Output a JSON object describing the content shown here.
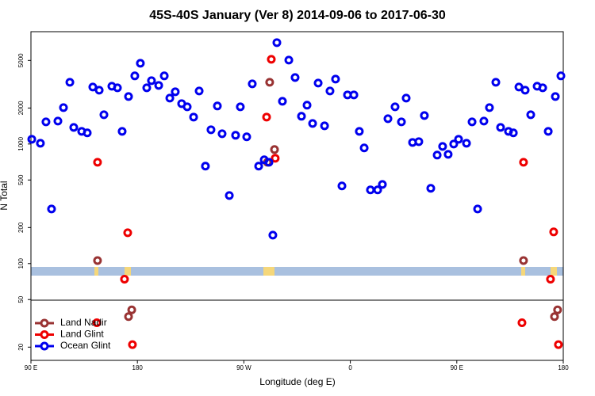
{
  "chart_data": {
    "type": "scatter",
    "title": "45S-40S January (Ver 8)   2014-09-06 to 2017-06-30",
    "x_label": "Longitude (deg E)",
    "y_label": "N Total",
    "log_y": true,
    "legend": "bottom-left",
    "xlim": [
      90,
      540
    ],
    "ylim": [
      15.5,
      8700
    ],
    "xticks": [
      {
        "value": 90,
        "label": "90 E"
      },
      180,
      {
        "value": 270,
        "label": "90 W"
      },
      {
        "value": 360,
        "label": "0"
      },
      {
        "value": 450,
        "label": "90 E"
      },
      {
        "value": 540,
        "label": "180"
      }
    ],
    "yticks": [
      20,
      50,
      100,
      200,
      500,
      1000,
      2000,
      5000
    ],
    "series": [
      {
        "name": "Land Nadir",
        "color": "#993333",
        "x": [
          146.3,
          172.5,
          175.2,
          289.9,
          291.8,
          295.9,
          506.4,
          532.6,
          535.2
        ],
        "values": [
          106,
          36,
          41,
          704,
          3285,
          899,
          106,
          36,
          41
        ]
      },
      {
        "name": "Land Glint",
        "color": "#ee0000",
        "x": [
          146.3,
          171.8,
          169.1,
          175.8,
          145.7,
          289.2,
          293.2,
          296.5,
          506.4,
          531.9,
          529.2,
          535.9,
          505.1
        ],
        "values": [
          704,
          181,
          74,
          21,
          32,
          1680,
          5112,
          760,
          704,
          184,
          74,
          21,
          32
        ]
      },
      {
        "name": "Ocean Glint",
        "color": "#0000ee",
        "x": [
          90.7,
          98.0,
          102.7,
          107.4,
          112.8,
          117.5,
          122.9,
          126.2,
          132.9,
          137.6,
          142.3,
          147.7,
          151.7,
          158.4,
          163.1,
          167.1,
          172.5,
          177.8,
          182.5,
          187.9,
          191.9,
          198.0,
          202.7,
          207.4,
          212.0,
          217.4,
          222.1,
          227.5,
          232.2,
          237.5,
          242.2,
          247.6,
          251.6,
          257.7,
          263.0,
          267.0,
          272.4,
          277.1,
          282.5,
          287.2,
          291.2,
          294.5,
          297.9,
          302.6,
          308.0,
          313.3,
          318.7,
          323.4,
          328.1,
          332.8,
          338.2,
          342.8,
          347.5,
          352.9,
          357.6,
          363.0,
          367.6,
          371.7,
          377.0,
          383.1,
          387.1,
          391.8,
          397.8,
          403.2,
          407.2,
          412.6,
          417.9,
          422.6,
          428.0,
          433.4,
          438.0,
          442.7,
          447.4,
          451.5,
          458.2,
          462.9,
          467.6,
          472.9,
          477.6,
          483.0,
          487.0,
          493.7,
          497.8,
          502.5,
          507.8,
          512.5,
          517.9,
          522.6,
          527.3,
          533.3,
          538.0
        ],
        "values": [
          1096,
          1015,
          1532,
          286,
          1556,
          2017,
          3285,
          1377,
          1276,
          1239,
          2998,
          2820,
          1758,
          3043,
          2952,
          1276,
          2495,
          3714,
          4735,
          2952,
          3388,
          3092,
          3714,
          2420,
          2735,
          2177,
          2047,
          1680,
          2778,
          653,
          1316,
          2080,
          1219,
          371,
          1183,
          2047,
          1148,
          3187,
          653,
          738,
          704,
          173,
          7046,
          2278,
          5035,
          3600,
          1706,
          2112,
          1486,
          3236,
          1420,
          2778,
          3490,
          446,
          2575,
          2575,
          1276,
          927,
          413,
          413,
          459,
          1629,
          2047,
          1532,
          2420,
          1031,
          1047,
          1731,
          426,
          808,
          955,
          820,
          1000,
          1096,
          1015,
          1532,
          286,
          1556,
          2017,
          3285,
          1377,
          1276,
          1239,
          2998,
          2820,
          1758,
          3043,
          2952,
          1276,
          2495,
          3714
        ]
      }
    ]
  }
}
